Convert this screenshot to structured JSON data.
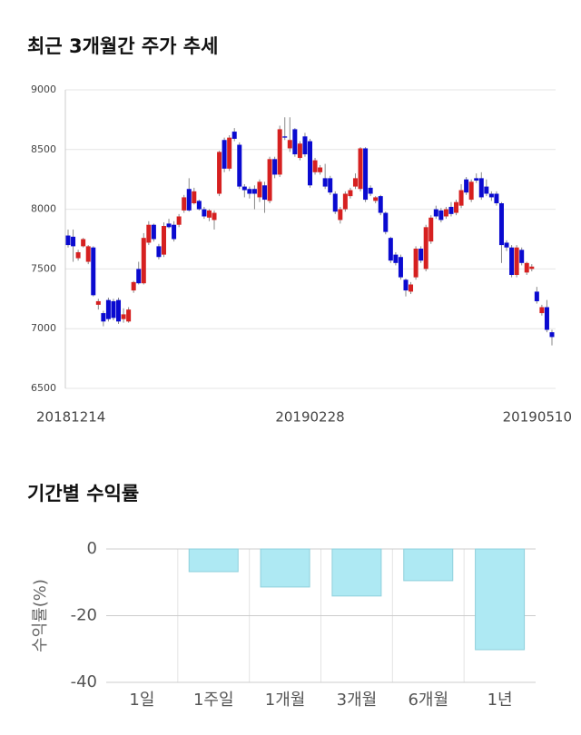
{
  "chart_data": [
    {
      "type": "candlestick",
      "title": "최근 3개월간 주가 추세",
      "categories": [
        "20181214",
        null,
        null,
        null,
        null,
        null,
        null,
        null,
        null,
        null,
        null,
        null,
        null,
        null,
        null,
        null,
        null,
        null,
        null,
        null,
        null,
        null,
        null,
        null,
        null,
        null,
        null,
        null,
        null,
        null,
        null,
        null,
        null,
        null,
        null,
        null,
        null,
        null,
        null,
        null,
        null,
        null,
        null,
        null,
        null,
        null,
        null,
        null,
        "20190228",
        null,
        null,
        null,
        null,
        null,
        null,
        null,
        null,
        null,
        null,
        null,
        null,
        null,
        null,
        null,
        null,
        null,
        null,
        null,
        null,
        null,
        null,
        null,
        null,
        null,
        null,
        null,
        null,
        null,
        null,
        null,
        null,
        null,
        null,
        null,
        null,
        null,
        null,
        null,
        null,
        null,
        null,
        null,
        null,
        null,
        null,
        null,
        "20190510"
      ],
      "open": [
        7780,
        7770,
        7590,
        7690,
        7560,
        7680,
        7200,
        7130,
        7240,
        7230,
        7240,
        7080,
        7060,
        7320,
        7500,
        7380,
        7720,
        7870,
        7690,
        7620,
        7880,
        7870,
        7870,
        7990,
        8170,
        8050,
        8070,
        8000,
        7930,
        7910,
        8130,
        8580,
        8340,
        8650,
        8540,
        8190,
        8170,
        8170,
        8100,
        8200,
        8070,
        8420,
        8290,
        8610,
        8510,
        8670,
        8430,
        8610,
        8570,
        8310,
        8310,
        8260,
        8260,
        8130,
        7910,
        8000,
        8110,
        8190,
        8170,
        8510,
        8180,
        8070,
        8110,
        7970,
        7760,
        7620,
        7600,
        7410,
        7310,
        7430,
        7670,
        7500,
        7730,
        8000,
        7990,
        7940,
        8020,
        7970,
        8030,
        8250,
        8080,
        8260,
        8260,
        8190,
        8130,
        8130,
        8050,
        7720,
        7680,
        7450,
        7660,
        7470,
        7500,
        7310,
        7130,
        7180,
        6970
      ],
      "high": [
        7830,
        7830,
        7660,
        7760,
        7700,
        7690,
        7250,
        7150,
        7260,
        7250,
        7260,
        7170,
        7180,
        7400,
        7560,
        7800,
        7900,
        7880,
        7710,
        7890,
        7920,
        7900,
        7960,
        8120,
        8260,
        8180,
        8080,
        8020,
        8000,
        7990,
        8490,
        8600,
        8620,
        8680,
        8560,
        8210,
        8190,
        8200,
        8250,
        8230,
        8440,
        8440,
        8700,
        8770,
        8770,
        8680,
        8570,
        8640,
        8590,
        8430,
        8370,
        8380,
        8280,
        8150,
        8020,
        8150,
        8180,
        8300,
        8520,
        8520,
        8200,
        8110,
        8120,
        7980,
        7770,
        7640,
        7620,
        7420,
        7390,
        7690,
        7690,
        7870,
        7950,
        8030,
        8010,
        8020,
        8060,
        8080,
        8210,
        8270,
        8250,
        8300,
        8310,
        8250,
        8150,
        8150,
        8060,
        7740,
        7700,
        7700,
        7680,
        7560,
        7540,
        7350,
        7200,
        7240,
        6990
      ],
      "low": [
        7680,
        7560,
        7570,
        7680,
        7540,
        7270,
        7160,
        7020,
        7060,
        7070,
        7040,
        7050,
        7050,
        7300,
        7370,
        7370,
        7700,
        7730,
        7580,
        7600,
        7840,
        7730,
        7850,
        7970,
        7980,
        8040,
        7990,
        7920,
        7900,
        7830,
        8110,
        8310,
        8320,
        8570,
        8170,
        8100,
        8090,
        8000,
        8060,
        7970,
        8050,
        8260,
        8270,
        8580,
        8480,
        8440,
        8410,
        8440,
        8180,
        8290,
        8290,
        8170,
        8120,
        7960,
        7880,
        7980,
        8090,
        8170,
        8150,
        8060,
        8110,
        8050,
        7950,
        7790,
        7550,
        7530,
        7410,
        7270,
        7290,
        7410,
        7550,
        7480,
        7710,
        7920,
        7890,
        7920,
        7940,
        7950,
        8010,
        8120,
        8060,
        8220,
        8080,
        8110,
        8070,
        8030,
        7550,
        7650,
        7430,
        7430,
        7530,
        7450,
        7480,
        7210,
        7110,
        6970,
        6860
      ],
      "close": [
        7700,
        7690,
        7640,
        7750,
        7690,
        7280,
        7230,
        7060,
        7080,
        7090,
        7060,
        7120,
        7160,
        7390,
        7380,
        7760,
        7870,
        7750,
        7600,
        7860,
        7850,
        7750,
        7940,
        8100,
        7990,
        8150,
        8000,
        7940,
        7990,
        7970,
        8480,
        8340,
        8600,
        8590,
        8190,
        8160,
        8130,
        8130,
        8230,
        8080,
        8420,
        8290,
        8670,
        8600,
        8580,
        8460,
        8550,
        8460,
        8200,
        8410,
        8350,
        8190,
        8140,
        7980,
        8000,
        8130,
        8160,
        8260,
        8510,
        8080,
        8130,
        8100,
        7970,
        7810,
        7570,
        7550,
        7430,
        7320,
        7370,
        7670,
        7570,
        7850,
        7930,
        7940,
        7910,
        8000,
        7960,
        8060,
        8160,
        8140,
        8230,
        8240,
        8100,
        8130,
        8100,
        8050,
        7700,
        7680,
        7450,
        7680,
        7550,
        7550,
        7520,
        7230,
        7180,
        6990,
        6930
      ],
      "up_color": "#d62020",
      "down_color": "#0a0ad0",
      "ylim": [
        6500,
        9000
      ],
      "yticks": [
        6500,
        7000,
        7500,
        8000,
        8500,
        9000
      ],
      "grid": true
    },
    {
      "type": "bar",
      "title": "기간별 수익률",
      "ylabel": "수익률(%)",
      "categories": [
        "1일",
        "1주일",
        "1개월",
        "3개월",
        "6개월",
        "1년"
      ],
      "values": [
        0,
        -6.8,
        -11.4,
        -14.1,
        -9.5,
        -30.2
      ],
      "color": "#aee9f3",
      "ylim": [
        -40,
        0
      ],
      "yticks": [
        -40,
        -20,
        0
      ],
      "grid": true
    }
  ]
}
